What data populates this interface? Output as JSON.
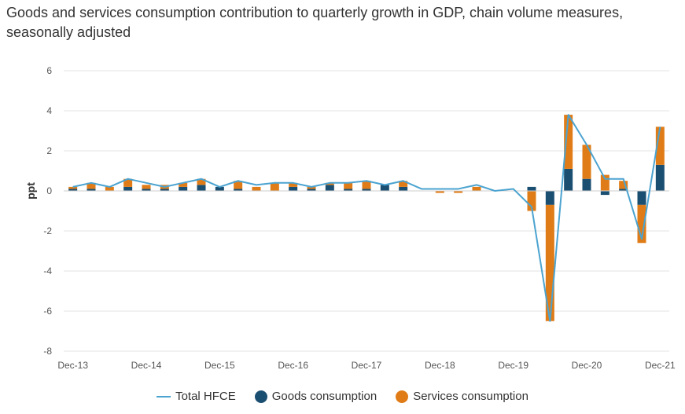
{
  "chart_data": {
    "type": "bar",
    "title": "Goods and services consumption contribution to quarterly growth in GDP, chain volume measures, seasonally adjusted",
    "ylabel": "ppt",
    "xlabel": "",
    "ylim": [
      -8,
      6
    ],
    "yticks": [
      6,
      4,
      2,
      0,
      -2,
      -4,
      -6,
      -8
    ],
    "grid": true,
    "legend_position": "bottom",
    "x_tick_labels": [
      "Dec-13",
      "Dec-14",
      "Dec-15",
      "Dec-16",
      "Dec-17",
      "Dec-18",
      "Dec-19",
      "Dec-20",
      "Dec-21"
    ],
    "x_tick_indices": [
      0,
      4,
      8,
      12,
      16,
      20,
      24,
      28,
      32
    ],
    "categories": [
      "Dec-13",
      "Mar-14",
      "Jun-14",
      "Sep-14",
      "Dec-14",
      "Mar-15",
      "Jun-15",
      "Sep-15",
      "Dec-15",
      "Mar-16",
      "Jun-16",
      "Sep-16",
      "Dec-16",
      "Mar-17",
      "Jun-17",
      "Sep-17",
      "Dec-17",
      "Mar-18",
      "Jun-18",
      "Sep-18",
      "Dec-18",
      "Mar-19",
      "Jun-19",
      "Sep-19",
      "Dec-19",
      "Mar-20",
      "Jun-20",
      "Sep-20",
      "Dec-20",
      "Mar-21",
      "Jun-21",
      "Sep-21",
      "Dec-21"
    ],
    "series": [
      {
        "name": "Goods consumption",
        "kind": "bar",
        "color": "#1b4f72",
        "values": [
          0.1,
          0.1,
          0.0,
          0.2,
          0.1,
          0.1,
          0.2,
          0.3,
          0.2,
          0.1,
          0.0,
          0.0,
          0.2,
          0.1,
          0.3,
          0.1,
          0.1,
          0.3,
          0.2,
          0.0,
          0.0,
          0.0,
          0.0,
          0.0,
          0.0,
          0.2,
          -0.7,
          1.1,
          0.6,
          -0.2,
          0.1,
          -0.7,
          1.3
        ]
      },
      {
        "name": "Services consumption",
        "kind": "bar",
        "color": "#e07c17",
        "values": [
          0.1,
          0.3,
          0.2,
          0.4,
          0.2,
          0.2,
          0.2,
          0.3,
          0.0,
          0.4,
          0.2,
          0.4,
          0.2,
          0.1,
          0.1,
          0.3,
          0.4,
          0.0,
          0.3,
          0.0,
          -0.1,
          -0.1,
          0.2,
          0.0,
          0.0,
          -1.0,
          -5.8,
          2.7,
          1.7,
          0.8,
          0.4,
          -1.9,
          1.9
        ]
      },
      {
        "name": "Total HFCE",
        "kind": "line",
        "color": "#4ba3d0",
        "values": [
          0.2,
          0.4,
          0.2,
          0.6,
          0.4,
          0.2,
          0.4,
          0.6,
          0.2,
          0.5,
          0.3,
          0.4,
          0.4,
          0.2,
          0.4,
          0.4,
          0.5,
          0.3,
          0.5,
          0.1,
          0.1,
          0.1,
          0.3,
          0.0,
          0.1,
          -0.8,
          -6.5,
          3.8,
          2.3,
          0.6,
          0.6,
          -2.4,
          3.2
        ]
      }
    ]
  }
}
